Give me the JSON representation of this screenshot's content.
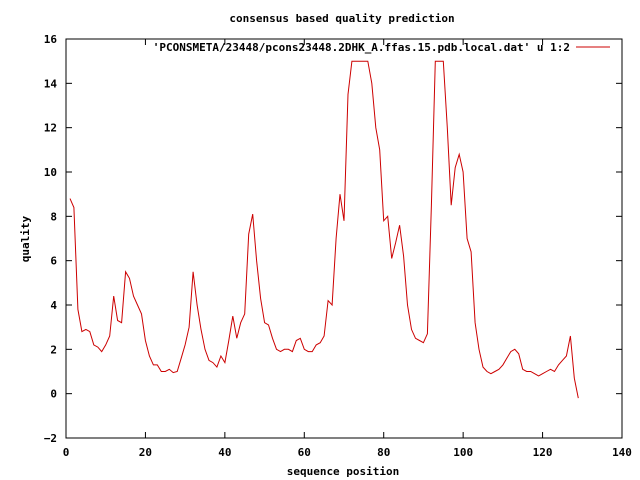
{
  "chart_data": {
    "type": "line",
    "title": "consensus based quality prediction",
    "xlabel": "sequence position",
    "ylabel": "quality",
    "xlim": [
      0,
      140
    ],
    "ylim": [
      -2,
      16
    ],
    "xticks": [
      0,
      20,
      40,
      60,
      80,
      100,
      120,
      140
    ],
    "yticks": [
      -2,
      0,
      2,
      4,
      6,
      8,
      10,
      12,
      14,
      16
    ],
    "grid": false,
    "legend_position": "top-right",
    "series": [
      {
        "name": "'PCONSMETA/23448/pcons23448.2DHK_A.ffas.15.pdb.local.dat' u 1:2",
        "color": "#cc0000",
        "x": [
          1,
          2,
          3,
          4,
          5,
          6,
          7,
          8,
          9,
          10,
          11,
          12,
          13,
          14,
          15,
          16,
          17,
          18,
          19,
          20,
          21,
          22,
          23,
          24,
          25,
          26,
          27,
          28,
          29,
          30,
          31,
          32,
          33,
          34,
          35,
          36,
          37,
          38,
          39,
          40,
          41,
          42,
          43,
          44,
          45,
          46,
          47,
          48,
          49,
          50,
          51,
          52,
          53,
          54,
          55,
          56,
          57,
          58,
          59,
          60,
          61,
          62,
          63,
          64,
          65,
          66,
          67,
          68,
          69,
          70,
          71,
          72,
          73,
          74,
          75,
          76,
          77,
          78,
          79,
          80,
          81,
          82,
          83,
          84,
          85,
          86,
          87,
          88,
          89,
          90,
          91,
          92,
          93,
          94,
          95,
          96,
          97,
          98,
          99,
          100,
          101,
          102,
          103,
          104,
          105,
          106,
          107,
          108,
          109,
          110,
          111,
          112,
          113,
          114,
          115,
          116,
          117,
          118,
          119,
          120,
          121,
          122,
          123,
          124,
          125,
          126,
          127,
          128,
          129
        ],
        "y": [
          8.8,
          8.4,
          3.8,
          2.8,
          2.9,
          2.8,
          2.2,
          2.1,
          1.9,
          2.2,
          2.6,
          4.4,
          3.3,
          3.2,
          5.5,
          5.2,
          4.4,
          4.0,
          3.6,
          2.4,
          1.7,
          1.3,
          1.3,
          1.0,
          1.0,
          1.1,
          0.95,
          1.0,
          1.6,
          2.2,
          3.0,
          5.5,
          4.0,
          2.9,
          2.0,
          1.5,
          1.4,
          1.2,
          1.7,
          1.4,
          2.4,
          3.5,
          2.5,
          3.2,
          3.6,
          7.2,
          8.1,
          6.0,
          4.3,
          3.2,
          3.1,
          2.5,
          2.0,
          1.9,
          2.0,
          2.0,
          1.9,
          2.4,
          2.5,
          2.0,
          1.9,
          1.9,
          2.2,
          2.3,
          2.6,
          4.2,
          4.0,
          7.0,
          9.0,
          7.8,
          13.5,
          15.0,
          15.0,
          15.0,
          15.0,
          15.0,
          14.0,
          12.0,
          11.0,
          7.8,
          8.0,
          6.1,
          6.8,
          7.6,
          6.2,
          4.0,
          2.9,
          2.5,
          2.4,
          2.3,
          2.7,
          8.5,
          15.0,
          15.0,
          15.0,
          12.0,
          8.5,
          10.2,
          10.8,
          10.0,
          7.0,
          6.4,
          3.2,
          2.0,
          1.2,
          1.0,
          0.9,
          1.0,
          1.1,
          1.3,
          1.6,
          1.9,
          2.0,
          1.8,
          1.1,
          1.0,
          1.0,
          0.9,
          0.8,
          0.9,
          1.0,
          1.1,
          1.0,
          1.3,
          1.5,
          1.7,
          2.6,
          0.7,
          -0.2
        ]
      }
    ]
  }
}
